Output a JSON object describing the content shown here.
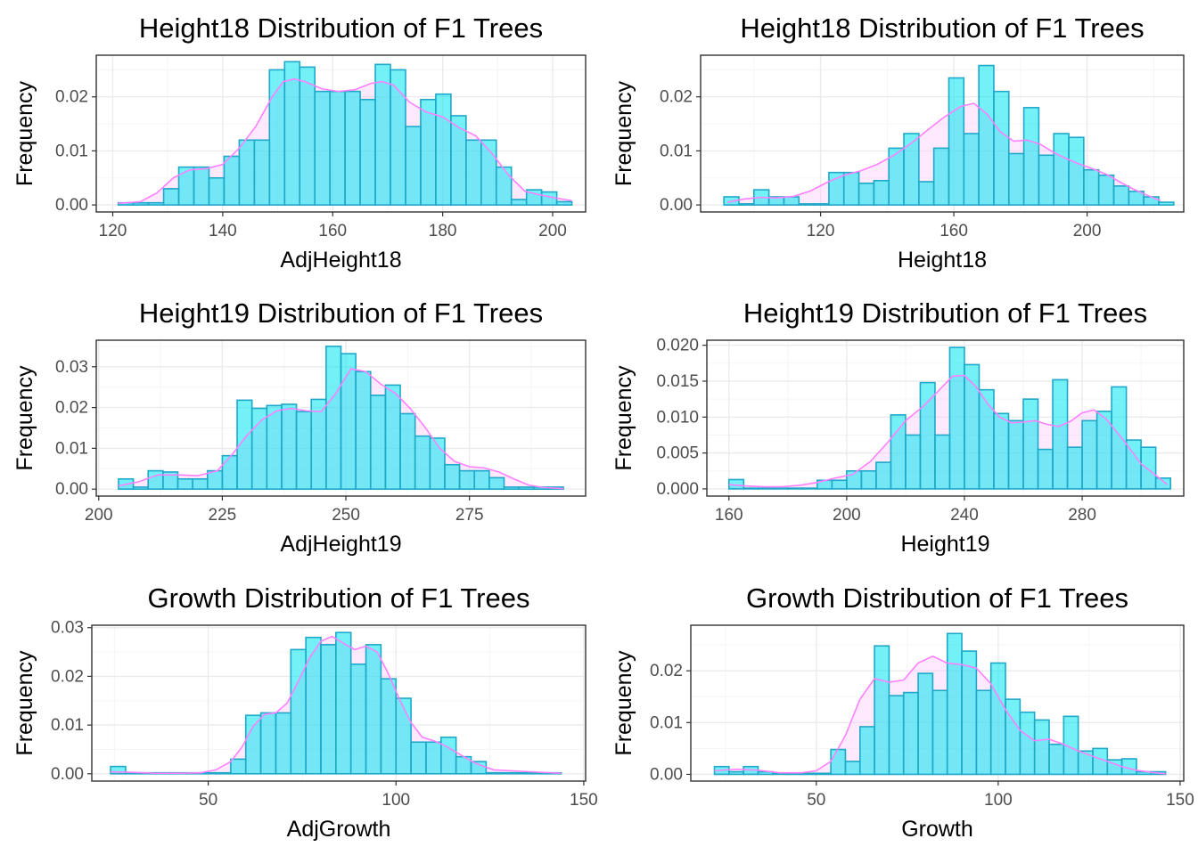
{
  "colors": {
    "hist_fill": "#00e5ee",
    "hist_stroke": "#1fa8c8",
    "density_line": "#ff80ff",
    "density_fill": "#ffc0ff",
    "panel_border": "#333333",
    "grid_major": "#ebebeb",
    "grid_minor": "#f5f5f5"
  },
  "chart_data": [
    {
      "type": "bar",
      "title": "Height18 Distribution of F1 Trees",
      "xlabel": "AdjHeight18",
      "ylabel": "Frequency",
      "xlim": [
        117,
        206
      ],
      "ylim": [
        -0.0013,
        0.0277
      ],
      "xticks": [
        120,
        140,
        160,
        180,
        200
      ],
      "xtick_labels": [
        "120",
        "140",
        "160",
        "180",
        "200"
      ],
      "yticks": [
        0,
        0.01,
        0.02
      ],
      "ytick_labels": [
        "0.00",
        "0.01",
        "0.02"
      ],
      "bin_edges": [
        121.0,
        123.75,
        126.5,
        129.25,
        132.0,
        134.75,
        137.5,
        140.25,
        143.0,
        145.75,
        148.5,
        151.25,
        154.0,
        156.75,
        159.5,
        162.25,
        165.0,
        167.75,
        170.5,
        173.25,
        176.0,
        178.75,
        181.5,
        184.25,
        187.0,
        189.75,
        192.5,
        195.25,
        198.0,
        200.75,
        203.5
      ],
      "hist_values": [
        0.0004,
        0.0004,
        0.0004,
        0.003,
        0.007,
        0.007,
        0.005,
        0.009,
        0.012,
        0.012,
        0.025,
        0.0265,
        0.0255,
        0.021,
        0.021,
        0.021,
        0.0195,
        0.026,
        0.025,
        0.0145,
        0.0195,
        0.0205,
        0.0165,
        0.012,
        0.012,
        0.007,
        0.001,
        0.0028,
        0.0024,
        0.0006
      ],
      "density": {
        "x": [
          121,
          125,
          128,
          131,
          134,
          137,
          140,
          143,
          146,
          149,
          151,
          153,
          155,
          158,
          161,
          164,
          167,
          169,
          171,
          174,
          177,
          180,
          183,
          186,
          189,
          192,
          195,
          198,
          201,
          203.5
        ],
        "y": [
          0.0003,
          0.0006,
          0.0022,
          0.005,
          0.0065,
          0.0067,
          0.0075,
          0.0105,
          0.0145,
          0.02,
          0.0228,
          0.0233,
          0.0228,
          0.0215,
          0.021,
          0.0213,
          0.0225,
          0.0228,
          0.0222,
          0.019,
          0.0172,
          0.0163,
          0.0143,
          0.0128,
          0.0095,
          0.0055,
          0.0025,
          0.0018,
          0.0012,
          0.0008
        ]
      }
    },
    {
      "type": "bar",
      "title": "Height18 Distribution of F1 Trees",
      "xlabel": "Height18",
      "ylabel": "Frequency",
      "xlim": [
        84,
        229
      ],
      "ylim": [
        -0.0013,
        0.0277
      ],
      "xticks": [
        120,
        160,
        200
      ],
      "xtick_labels": [
        "120",
        "160",
        "200"
      ],
      "yticks": [
        0,
        0.01,
        0.02
      ],
      "ytick_labels": [
        "0.00",
        "0.01",
        "0.02"
      ],
      "bin_edges": [
        91.0,
        95.5,
        100.0,
        104.5,
        109.0,
        113.5,
        118.0,
        122.5,
        127.0,
        131.5,
        136.0,
        140.5,
        145.0,
        149.5,
        154.0,
        158.5,
        163.0,
        167.5,
        172.0,
        176.5,
        181.0,
        185.5,
        190.0,
        194.5,
        199.0,
        203.5,
        208.0,
        212.5,
        217.0,
        221.5,
        226.0
      ],
      "hist_values": [
        0.0015,
        0.0002,
        0.0028,
        0.0015,
        0.0015,
        0.0002,
        0.0002,
        0.006,
        0.006,
        0.004,
        0.0045,
        0.0105,
        0.0132,
        0.0043,
        0.0105,
        0.0235,
        0.0132,
        0.0258,
        0.021,
        0.0095,
        0.018,
        0.0092,
        0.0132,
        0.0125,
        0.0065,
        0.0055,
        0.0035,
        0.0025,
        0.0015,
        0.0005
      ],
      "density": {
        "x": [
          92,
          97,
          102,
          107,
          112,
          117,
          122,
          127,
          132,
          137,
          142,
          147,
          152,
          157,
          162,
          166,
          170,
          174,
          178,
          182,
          186,
          190,
          194,
          198,
          202,
          206,
          210,
          214,
          218,
          222
        ],
        "y": [
          0.0005,
          0.0011,
          0.0014,
          0.0013,
          0.0016,
          0.0026,
          0.0042,
          0.0055,
          0.0063,
          0.0075,
          0.0092,
          0.0113,
          0.0138,
          0.0162,
          0.0182,
          0.0188,
          0.0168,
          0.0135,
          0.0118,
          0.012,
          0.0112,
          0.0097,
          0.0085,
          0.0075,
          0.0066,
          0.0056,
          0.0042,
          0.0029,
          0.0018,
          0.0008
        ]
      }
    },
    {
      "type": "bar",
      "title": "Height19 Distribution of F1 Trees",
      "xlabel": "AdjHeight19",
      "ylabel": "Frequency",
      "xlim": [
        199.5,
        298.5
      ],
      "ylim": [
        -0.0017,
        0.0365
      ],
      "xticks": [
        200,
        225,
        250,
        275
      ],
      "xtick_labels": [
        "200",
        "225",
        "250",
        "275"
      ],
      "yticks": [
        0,
        0.01,
        0.02,
        0.03
      ],
      "ytick_labels": [
        "0.00",
        "0.01",
        "0.02",
        "0.03"
      ],
      "bin_edges": [
        204.0,
        207.0,
        210.0,
        213.0,
        216.0,
        219.0,
        222.0,
        225.0,
        228.0,
        231.0,
        234.0,
        237.0,
        240.0,
        243.0,
        246.0,
        249.0,
        252.0,
        255.0,
        258.0,
        261.0,
        264.0,
        267.0,
        270.0,
        273.0,
        276.0,
        279.0,
        282.0,
        285.0,
        288.0,
        291.0,
        294.0
      ],
      "hist_values": [
        0.0025,
        0.0005,
        0.0045,
        0.0042,
        0.0025,
        0.0025,
        0.0045,
        0.0082,
        0.0218,
        0.0198,
        0.0205,
        0.0208,
        0.019,
        0.022,
        0.035,
        0.0332,
        0.0288,
        0.023,
        0.0255,
        0.0185,
        0.013,
        0.0125,
        0.006,
        0.0045,
        0.0045,
        0.0028,
        0.0005,
        0.0005,
        0.0005,
        0.0005
      ],
      "density": {
        "x": [
          204,
          208,
          212,
          216,
          220,
          224,
          227,
          230,
          233,
          236,
          239,
          242,
          245,
          248,
          251,
          254,
          257,
          260,
          263,
          266,
          269,
          272,
          275,
          278,
          281,
          284,
          287,
          290,
          293,
          294
        ],
        "y": [
          0.0008,
          0.0018,
          0.0035,
          0.0035,
          0.0033,
          0.0045,
          0.0085,
          0.0132,
          0.017,
          0.0192,
          0.0198,
          0.0192,
          0.019,
          0.0235,
          0.0295,
          0.0288,
          0.0258,
          0.0235,
          0.0198,
          0.0152,
          0.01,
          0.0068,
          0.0055,
          0.0052,
          0.0042,
          0.0025,
          0.001,
          0.0004,
          0.0002,
          0.0001
        ]
      }
    },
    {
      "type": "bar",
      "title": "Height19 Distribution of F1 Trees",
      "xlabel": "Height19",
      "ylabel": "Frequency",
      "xlim": [
        152.5,
        314.5
      ],
      "ylim": [
        -0.001,
        0.0207
      ],
      "xticks": [
        160,
        200,
        240,
        280
      ],
      "xtick_labels": [
        "160",
        "200",
        "240",
        "280"
      ],
      "yticks": [
        0,
        0.005,
        0.01,
        0.015,
        0.02
      ],
      "ytick_labels": [
        "0.000",
        "0.005",
        "0.010",
        "0.015",
        "0.020"
      ],
      "bin_edges": [
        160.0,
        165.0,
        170.0,
        175.0,
        180.0,
        185.0,
        190.0,
        195.0,
        200.0,
        205.0,
        210.0,
        215.0,
        220.0,
        225.0,
        230.0,
        235.0,
        240.0,
        245.0,
        250.0,
        255.0,
        260.0,
        265.0,
        270.0,
        275.0,
        280.0,
        285.0,
        290.0,
        295.0,
        300.0,
        305.0,
        310.0
      ],
      "hist_values": [
        0.0013,
        0.0001,
        0.0001,
        0.0001,
        0.0001,
        0.0001,
        0.0012,
        0.0012,
        0.0025,
        0.0025,
        0.0037,
        0.0103,
        0.0075,
        0.0148,
        0.0075,
        0.0197,
        0.0173,
        0.0138,
        0.0105,
        0.0095,
        0.0125,
        0.0055,
        0.0152,
        0.0058,
        0.0095,
        0.0108,
        0.0142,
        0.0068,
        0.0058,
        0.0015
      ],
      "density": {
        "x": [
          160,
          166,
          172,
          178,
          184,
          190,
          196,
          202,
          208,
          214,
          220,
          226,
          232,
          236,
          240,
          244,
          248,
          252,
          256,
          260,
          264,
          268,
          272,
          276,
          280,
          284,
          288,
          294,
          300,
          309
        ],
        "y": [
          0.0006,
          0.0004,
          0.0003,
          0.0003,
          0.0005,
          0.0009,
          0.0015,
          0.002,
          0.0038,
          0.0065,
          0.0095,
          0.0115,
          0.014,
          0.0157,
          0.0158,
          0.0142,
          0.0118,
          0.01,
          0.0092,
          0.0093,
          0.0095,
          0.009,
          0.0087,
          0.0094,
          0.0106,
          0.011,
          0.0098,
          0.0068,
          0.0035,
          0.0006
        ]
      }
    },
    {
      "type": "bar",
      "title": "Growth Distribution of F1 Trees",
      "xlabel": "AdjGrowth",
      "ylabel": "Frequency",
      "xlim": [
        19,
        150.5
      ],
      "ylim": [
        -0.0015,
        0.0305
      ],
      "xticks": [
        50,
        100,
        150
      ],
      "xtick_labels": [
        "50",
        "100",
        "150"
      ],
      "yticks": [
        0,
        0.01,
        0.02,
        0.03
      ],
      "ytick_labels": [
        "0.00",
        "0.01",
        "0.02",
        "0.03"
      ],
      "bin_edges": [
        24.0,
        28.0,
        32.0,
        36.0,
        40.0,
        44.0,
        48.0,
        52.0,
        56.0,
        60.0,
        64.0,
        68.0,
        72.0,
        76.0,
        80.0,
        84.0,
        88.0,
        92.0,
        96.0,
        100.0,
        104.0,
        108.0,
        112.0,
        116.0,
        120.0,
        124.0,
        128.0,
        132.0,
        136.0,
        140.0,
        144.0
      ],
      "hist_values": [
        0.0015,
        0.0002,
        0.0002,
        0.0002,
        0.0002,
        0.0002,
        0.0002,
        0.0002,
        0.003,
        0.012,
        0.0125,
        0.0125,
        0.0255,
        0.028,
        0.0265,
        0.029,
        0.0225,
        0.0265,
        0.0195,
        0.0155,
        0.0065,
        0.0065,
        0.0075,
        0.0035,
        0.0025,
        0.0002,
        0.0002,
        0.0002,
        0.0002,
        0.0002
      ],
      "density": {
        "x": [
          24,
          30,
          36,
          42,
          48,
          52,
          56,
          59,
          62,
          65,
          68,
          71,
          74,
          77,
          80,
          83,
          86,
          89,
          92,
          95,
          98,
          101,
          104,
          107,
          110,
          113,
          117,
          121,
          126,
          144
        ],
        "y": [
          0.0004,
          0.0003,
          0.0001,
          0.0001,
          0.0002,
          0.0008,
          0.0025,
          0.0055,
          0.0098,
          0.0122,
          0.0125,
          0.0145,
          0.019,
          0.0238,
          0.0272,
          0.0282,
          0.0268,
          0.0255,
          0.0262,
          0.025,
          0.0205,
          0.0152,
          0.0105,
          0.0075,
          0.0068,
          0.0058,
          0.004,
          0.0022,
          0.0008,
          0.0001
        ]
      }
    },
    {
      "type": "bar",
      "title": "Growth Distribution of F1 Trees",
      "xlabel": "Growth",
      "ylabel": "Frequency",
      "xlim": [
        15.5,
        151
      ],
      "ylim": [
        -0.0013,
        0.0288
      ],
      "xticks": [
        50,
        100,
        150
      ],
      "xtick_labels": [
        "50",
        "100",
        "150"
      ],
      "yticks": [
        0,
        0.01,
        0.02
      ],
      "ytick_labels": [
        "0.00",
        "0.01",
        "0.02"
      ],
      "bin_edges": [
        22.0,
        26.0,
        30.0,
        34.0,
        38.0,
        42.0,
        46.0,
        50.0,
        54.0,
        58.0,
        62.0,
        66.0,
        70.0,
        74.0,
        78.0,
        82.0,
        86.0,
        90.0,
        94.0,
        98.0,
        102.0,
        106.0,
        110.0,
        114.0,
        118.0,
        122.0,
        126.0,
        130.0,
        134.0,
        138.0,
        142.0,
        146.0
      ],
      "hist_values": [
        0.0015,
        0.0005,
        0.0015,
        0.0005,
        0.0002,
        0.0002,
        0.0002,
        0.0002,
        0.0048,
        0.0025,
        0.0092,
        0.0248,
        0.0152,
        0.0158,
        0.0195,
        0.0162,
        0.0272,
        0.0238,
        0.0162,
        0.0215,
        0.0145,
        0.012,
        0.0105,
        0.0058,
        0.0112,
        0.0045,
        0.005,
        0.0028,
        0.003,
        0.0005,
        0.0005
      ],
      "density": {
        "x": [
          22,
          28,
          34,
          40,
          46,
          50,
          54,
          58,
          62,
          66,
          70,
          74,
          78,
          82,
          86,
          90,
          94,
          98,
          102,
          106,
          110,
          114,
          118,
          122,
          126,
          130,
          134,
          138,
          142,
          146
        ],
        "y": [
          0.0007,
          0.001,
          0.0008,
          0.0003,
          0.0003,
          0.0007,
          0.0025,
          0.0075,
          0.0145,
          0.0185,
          0.0178,
          0.0182,
          0.0215,
          0.0228,
          0.0215,
          0.0212,
          0.0205,
          0.0175,
          0.0125,
          0.0085,
          0.0065,
          0.0068,
          0.0058,
          0.0045,
          0.0035,
          0.0025,
          0.0015,
          0.0008,
          0.0004,
          0.0001
        ]
      }
    }
  ]
}
